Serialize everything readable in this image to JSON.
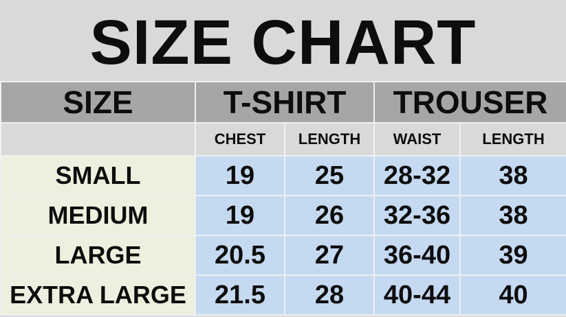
{
  "title": "SIZE CHART",
  "table": {
    "group_headers": [
      "SIZE",
      "T-SHIRT",
      "TROUSER"
    ],
    "sub_headers": [
      "CHEST",
      "LENGTH",
      "WAIST",
      "LENGTH"
    ],
    "rows": [
      [
        "SMALL",
        19,
        25,
        "28-32",
        38
      ],
      [
        "MEDIUM",
        19,
        26,
        "32-36",
        38
      ],
      [
        "LARGE",
        20.5,
        27,
        "36-40",
        39
      ],
      [
        "EXTRA LARGE",
        21.5,
        28,
        "40-44",
        40
      ]
    ]
  }
}
